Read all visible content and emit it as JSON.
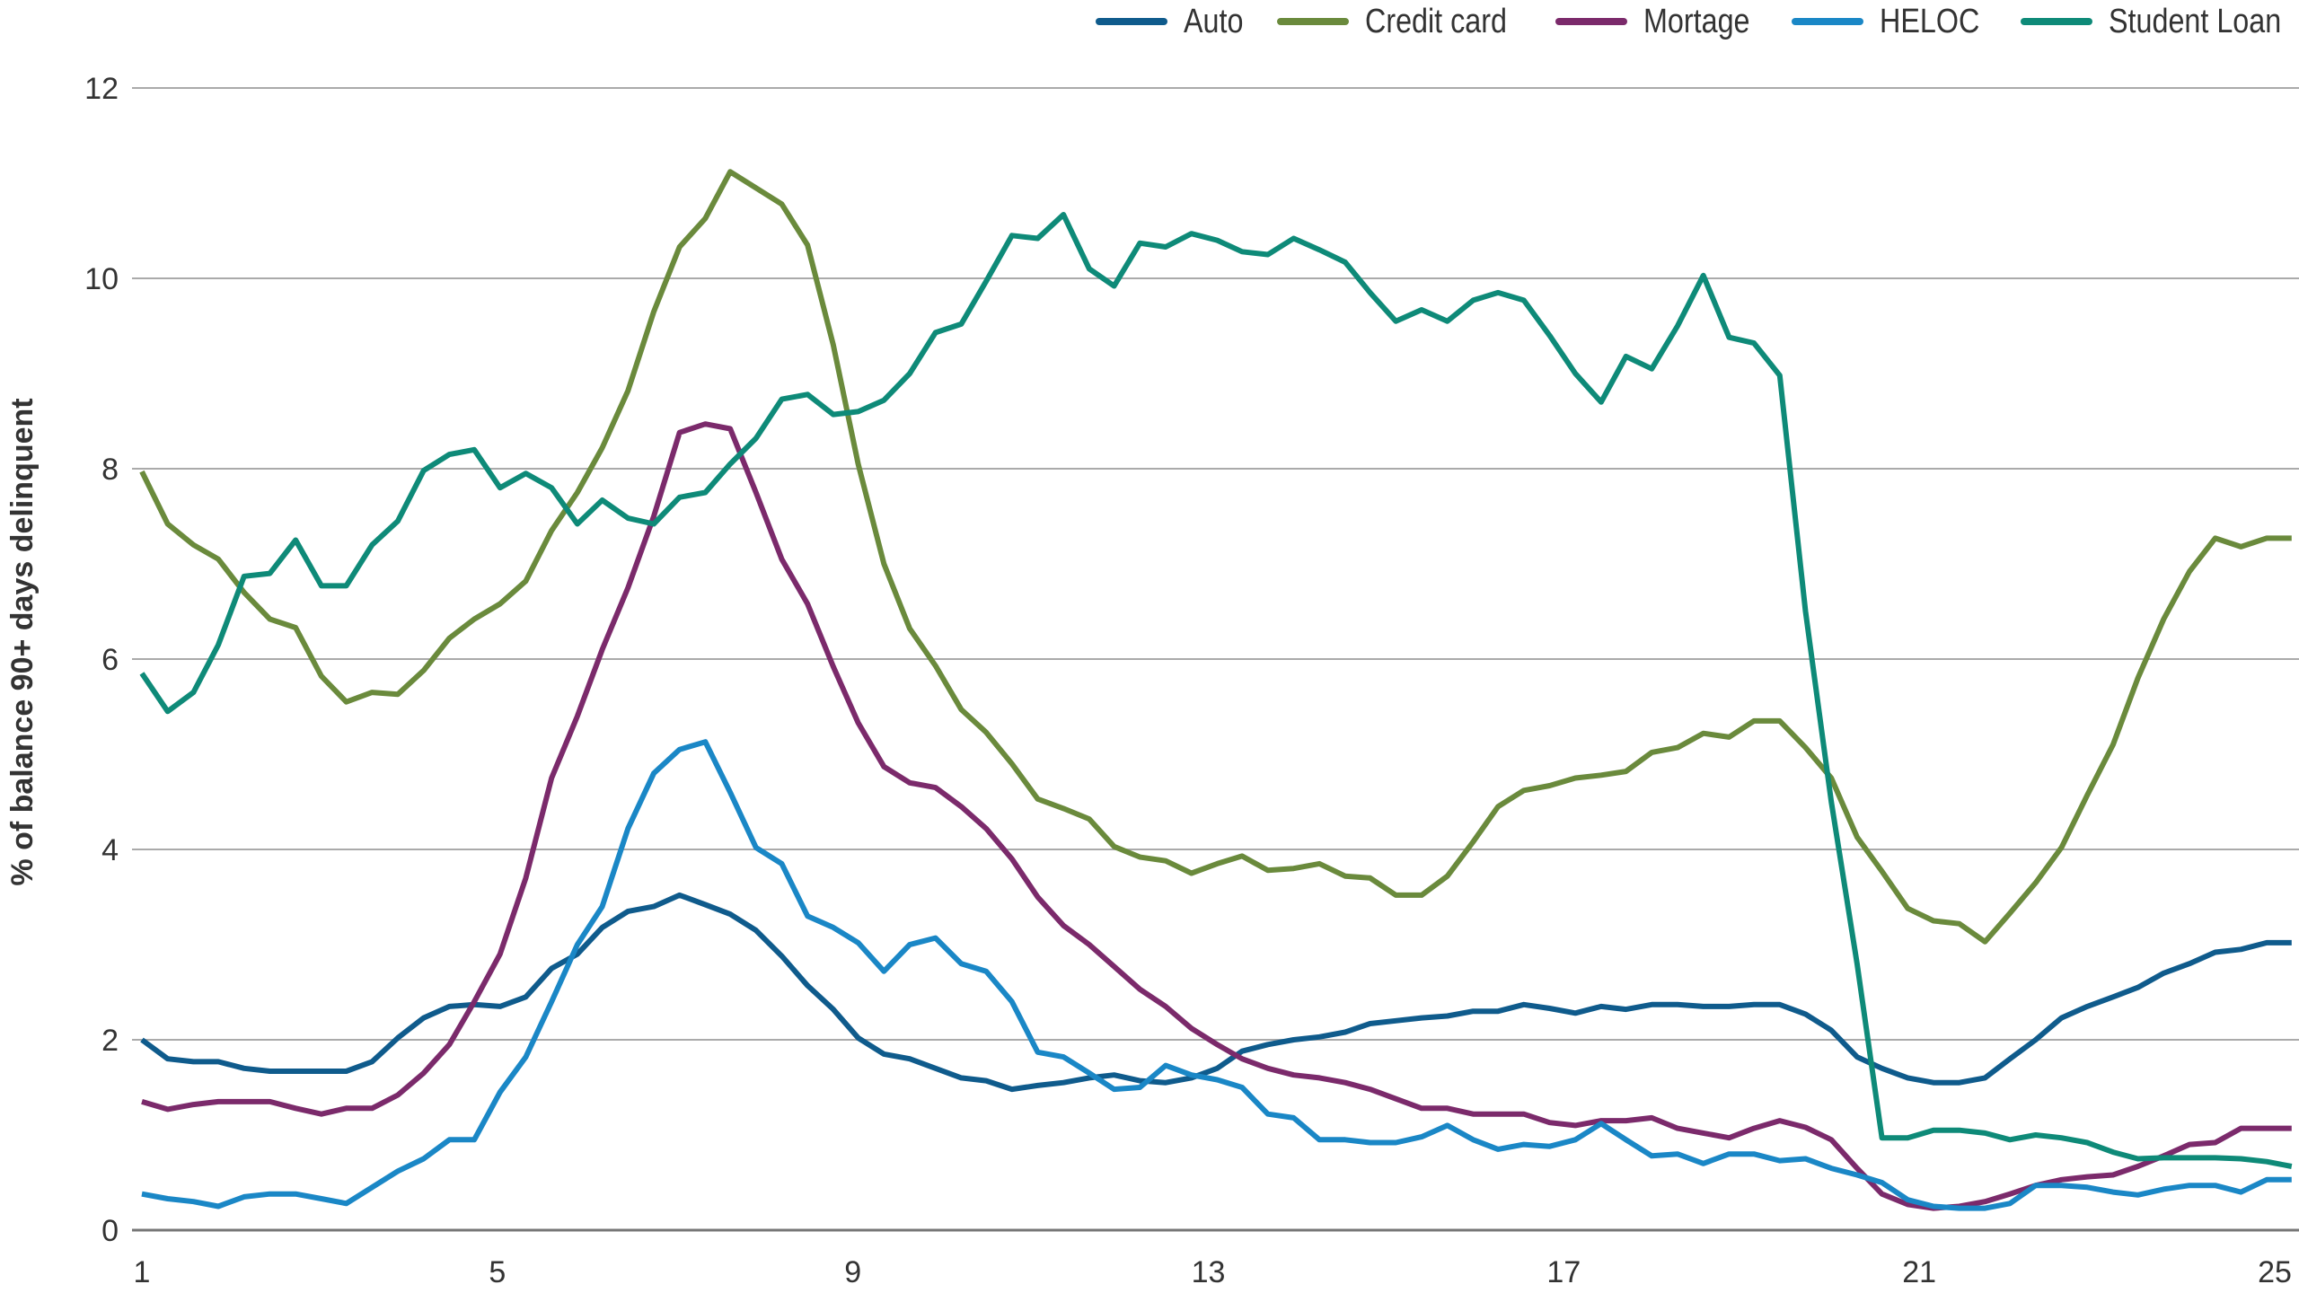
{
  "chart_data": {
    "type": "line",
    "title": "",
    "xlabel": "",
    "ylabel": "% of balance 90+ days delinquent",
    "xlim": [
      1,
      25.19
    ],
    "ylim": [
      0,
      12
    ],
    "x_ticks": [
      1,
      5,
      9,
      13,
      17,
      21,
      25
    ],
    "y_ticks": [
      0,
      2,
      4,
      6,
      8,
      10,
      12
    ],
    "grid": "horizontal",
    "legend_position": "top-right",
    "x": [
      1,
      1.29,
      1.58,
      1.86,
      2.15,
      2.44,
      2.73,
      3.02,
      3.3,
      3.59,
      3.88,
      4.17,
      4.46,
      4.74,
      5.03,
      5.32,
      5.61,
      5.9,
      6.18,
      6.47,
      6.76,
      7.05,
      7.34,
      7.62,
      7.91,
      8.2,
      8.49,
      8.78,
      9.06,
      9.35,
      9.64,
      9.93,
      10.22,
      10.5,
      10.79,
      11.08,
      11.37,
      11.66,
      11.94,
      12.23,
      12.52,
      12.81,
      13.1,
      13.38,
      13.67,
      13.96,
      14.25,
      14.54,
      14.82,
      15.11,
      15.4,
      15.69,
      15.98,
      16.26,
      16.55,
      16.84,
      17.13,
      17.42,
      17.7,
      17.99,
      18.28,
      18.57,
      18.86,
      19.14,
      19.43,
      19.72,
      20.01,
      20.3,
      20.58,
      20.87,
      21.16,
      21.45,
      21.74,
      22.02,
      22.31,
      22.6,
      22.89,
      23.18,
      23.46,
      23.75,
      24.04,
      24.33,
      24.62,
      24.91,
      25.19
    ],
    "series": [
      {
        "name": "Auto",
        "color": "#0f5b8c",
        "values": [
          2.0,
          1.8,
          1.77,
          1.77,
          1.7,
          1.67,
          1.67,
          1.67,
          1.67,
          1.77,
          2.02,
          2.23,
          2.35,
          2.37,
          2.35,
          2.45,
          2.75,
          2.9,
          3.18,
          3.35,
          3.4,
          3.52,
          3.42,
          3.32,
          3.15,
          2.88,
          2.57,
          2.32,
          2.02,
          1.85,
          1.8,
          1.7,
          1.6,
          1.57,
          1.48,
          1.52,
          1.55,
          1.6,
          1.63,
          1.57,
          1.55,
          1.6,
          1.7,
          1.88,
          1.95,
          2.0,
          2.03,
          2.08,
          2.17,
          2.2,
          2.23,
          2.25,
          2.3,
          2.3,
          2.37,
          2.33,
          2.28,
          2.35,
          2.32,
          2.37,
          2.37,
          2.35,
          2.35,
          2.37,
          2.37,
          2.27,
          2.1,
          1.82,
          1.7,
          1.6,
          1.55,
          1.55,
          1.6,
          1.8,
          2.0,
          2.23,
          2.35,
          2.45,
          2.55,
          2.7,
          2.8,
          2.92,
          2.95,
          3.02,
          3.02
        ]
      },
      {
        "name": "Credit card",
        "color": "#6a8a3c",
        "values": [
          7.97,
          7.42,
          7.2,
          7.05,
          6.7,
          6.42,
          6.33,
          5.82,
          5.55,
          5.65,
          5.63,
          5.88,
          6.22,
          6.42,
          6.58,
          6.82,
          7.35,
          7.75,
          8.22,
          8.82,
          9.65,
          10.33,
          10.63,
          11.12,
          10.95,
          10.78,
          10.35,
          9.3,
          8.05,
          7.0,
          6.32,
          5.93,
          5.47,
          5.23,
          4.9,
          4.53,
          4.43,
          4.32,
          4.03,
          3.92,
          3.88,
          3.75,
          3.85,
          3.93,
          3.78,
          3.8,
          3.85,
          3.72,
          3.7,
          3.52,
          3.52,
          3.72,
          4.08,
          4.45,
          4.62,
          4.67,
          4.75,
          4.78,
          4.82,
          5.02,
          5.07,
          5.22,
          5.18,
          5.35,
          5.35,
          5.07,
          4.75,
          4.13,
          3.77,
          3.38,
          3.25,
          3.22,
          3.03,
          3.33,
          3.65,
          4.02,
          4.57,
          5.1,
          5.8,
          6.42,
          6.92,
          7.27,
          7.18,
          7.27,
          7.27
        ]
      },
      {
        "name": "Mortage",
        "color": "#7b2a6b",
        "values": [
          1.35,
          1.27,
          1.32,
          1.35,
          1.35,
          1.35,
          1.28,
          1.22,
          1.28,
          1.28,
          1.42,
          1.65,
          1.95,
          2.4,
          2.9,
          3.7,
          4.75,
          5.4,
          6.1,
          6.75,
          7.5,
          8.38,
          8.47,
          8.42,
          7.75,
          7.05,
          6.58,
          5.92,
          5.33,
          4.87,
          4.7,
          4.65,
          4.45,
          4.22,
          3.9,
          3.5,
          3.2,
          3.0,
          2.77,
          2.53,
          2.35,
          2.12,
          1.95,
          1.8,
          1.7,
          1.63,
          1.6,
          1.55,
          1.48,
          1.38,
          1.28,
          1.28,
          1.22,
          1.22,
          1.22,
          1.13,
          1.1,
          1.15,
          1.15,
          1.18,
          1.07,
          1.02,
          0.97,
          1.07,
          1.15,
          1.08,
          0.95,
          0.65,
          0.38,
          0.27,
          0.23,
          0.25,
          0.3,
          0.38,
          0.47,
          0.53,
          0.56,
          0.58,
          0.67,
          0.78,
          0.9,
          0.92,
          1.07,
          1.07,
          1.07
        ]
      },
      {
        "name": "HELOC",
        "color": "#1a87c6",
        "values": [
          0.38,
          0.33,
          0.3,
          0.25,
          0.35,
          0.38,
          0.38,
          0.33,
          0.28,
          0.45,
          0.62,
          0.75,
          0.95,
          0.95,
          1.45,
          1.82,
          2.4,
          3.0,
          3.4,
          4.22,
          4.8,
          5.05,
          5.13,
          4.6,
          4.02,
          3.85,
          3.3,
          3.18,
          3.02,
          2.72,
          3.0,
          3.07,
          2.8,
          2.72,
          2.4,
          1.87,
          1.82,
          1.65,
          1.48,
          1.5,
          1.73,
          1.63,
          1.58,
          1.5,
          1.22,
          1.18,
          0.95,
          0.95,
          0.92,
          0.92,
          0.98,
          1.1,
          0.95,
          0.85,
          0.9,
          0.88,
          0.95,
          1.12,
          0.95,
          0.78,
          0.8,
          0.7,
          0.8,
          0.8,
          0.73,
          0.75,
          0.65,
          0.58,
          0.5,
          0.32,
          0.25,
          0.23,
          0.23,
          0.28,
          0.47,
          0.47,
          0.45,
          0.4,
          0.37,
          0.43,
          0.47,
          0.47,
          0.4,
          0.53,
          0.53
        ]
      },
      {
        "name": "Student Loan",
        "color": "#0e8a78",
        "values": [
          5.85,
          5.45,
          5.65,
          6.15,
          6.87,
          6.9,
          7.25,
          6.77,
          6.77,
          7.2,
          7.45,
          7.98,
          8.15,
          8.2,
          7.8,
          7.95,
          7.8,
          7.42,
          7.67,
          7.48,
          7.42,
          7.7,
          7.75,
          8.05,
          8.32,
          8.73,
          8.78,
          8.57,
          8.6,
          8.72,
          9.0,
          9.43,
          9.52,
          9.97,
          10.45,
          10.42,
          10.67,
          10.1,
          9.92,
          10.37,
          10.33,
          10.47,
          10.4,
          10.28,
          10.25,
          10.42,
          10.3,
          10.17,
          9.85,
          9.55,
          9.67,
          9.55,
          9.77,
          9.85,
          9.77,
          9.4,
          9.0,
          8.7,
          9.18,
          9.05,
          9.5,
          10.03,
          9.38,
          9.32,
          8.98,
          6.5,
          4.5,
          2.8,
          0.97,
          0.97,
          1.05,
          1.05,
          1.02,
          0.95,
          1.0,
          0.97,
          0.92,
          0.82,
          0.75,
          0.76,
          0.76,
          0.76,
          0.75,
          0.72,
          0.67
        ]
      }
    ]
  }
}
